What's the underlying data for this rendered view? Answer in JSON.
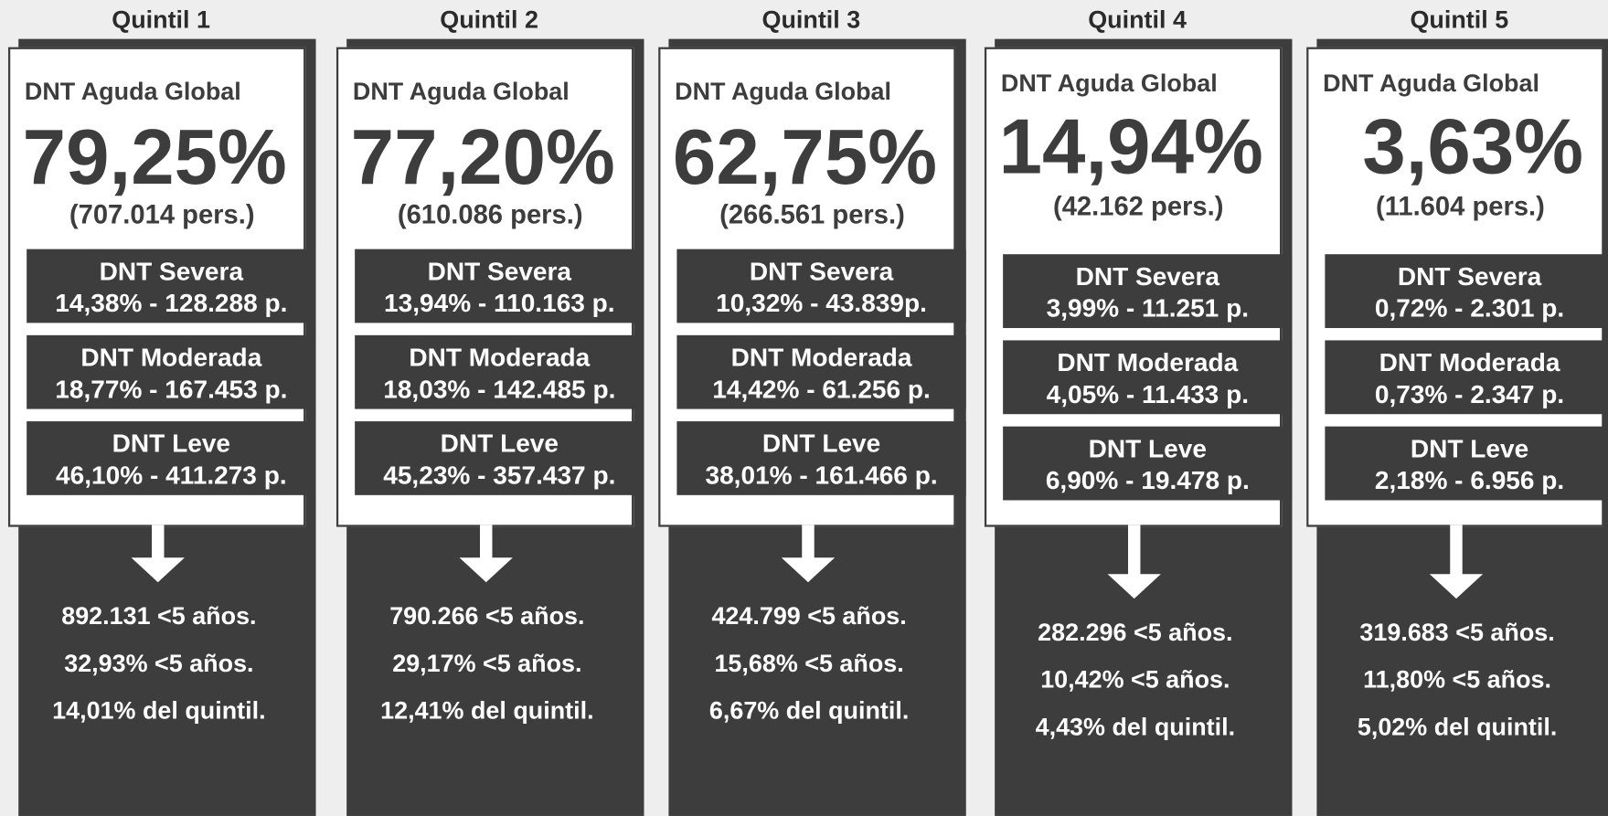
{
  "quintiles": [
    {
      "title": "Quintil 1",
      "global_label": "DNT Aguda Global",
      "global_pct": "79,25%",
      "global_pers": "(707.014 pers.)",
      "categories": [
        {
          "name": "DNT Severa",
          "detail": "14,38% - 128.288 p."
        },
        {
          "name": "DNT Moderada",
          "detail": "18,77% - 167.453 p."
        },
        {
          "name": "DNT Leve",
          "detail": "46,10% - 411.273 p."
        }
      ],
      "stats": [
        "892.131 <5 años.",
        "32,93% <5 años.",
        "14,01% del quintil."
      ]
    },
    {
      "title": "Quintil 2",
      "global_label": "DNT Aguda Global",
      "global_pct": "77,20%",
      "global_pers": "(610.086 pers.)",
      "categories": [
        {
          "name": "DNT Severa",
          "detail": "13,94% - 110.163 p."
        },
        {
          "name": "DNT Moderada",
          "detail": "18,03% - 142.485 p."
        },
        {
          "name": "DNT Leve",
          "detail": "45,23% - 357.437 p."
        }
      ],
      "stats": [
        "790.266 <5 años.",
        "29,17% <5 años.",
        "12,41% del quintil."
      ]
    },
    {
      "title": "Quintil 3",
      "global_label": "DNT Aguda Global",
      "global_pct": "62,75%",
      "global_pers": "(266.561 pers.)",
      "categories": [
        {
          "name": "DNT Severa",
          "detail": "10,32% - 43.839p."
        },
        {
          "name": "DNT Moderada",
          "detail": "14,42% - 61.256 p."
        },
        {
          "name": "DNT Leve",
          "detail": "38,01% - 161.466 p."
        }
      ],
      "stats": [
        "424.799 <5 años.",
        "15,68% <5 años.",
        "6,67% del quintil."
      ]
    },
    {
      "title": "Quintil 4",
      "global_label": "DNT Aguda Global",
      "global_pct": "14,94%",
      "global_pers": "(42.162 pers.)",
      "categories": [
        {
          "name": "DNT Severa",
          "detail": "3,99% - 11.251 p."
        },
        {
          "name": "DNT Moderada",
          "detail": "4,05% - 11.433 p."
        },
        {
          "name": "DNT Leve",
          "detail": "6,90% - 19.478 p."
        }
      ],
      "stats": [
        "282.296 <5 años.",
        "10,42% <5 años.",
        "4,43% del quintil."
      ]
    },
    {
      "title": "Quintil 5",
      "global_label": "DNT Aguda Global",
      "global_pct": "3,63%",
      "global_pers": "(11.604 pers.)",
      "categories": [
        {
          "name": "DNT Severa",
          "detail": "0,72% - 2.301 p."
        },
        {
          "name": "DNT Moderada",
          "detail": "0,73% - 2.347 p."
        },
        {
          "name": "DNT Leve",
          "detail": "2,18% - 6.956 p."
        }
      ],
      "stats": [
        "319.683 <5 años.",
        "11,80% <5 años.",
        "5,02% del quintil."
      ]
    }
  ]
}
